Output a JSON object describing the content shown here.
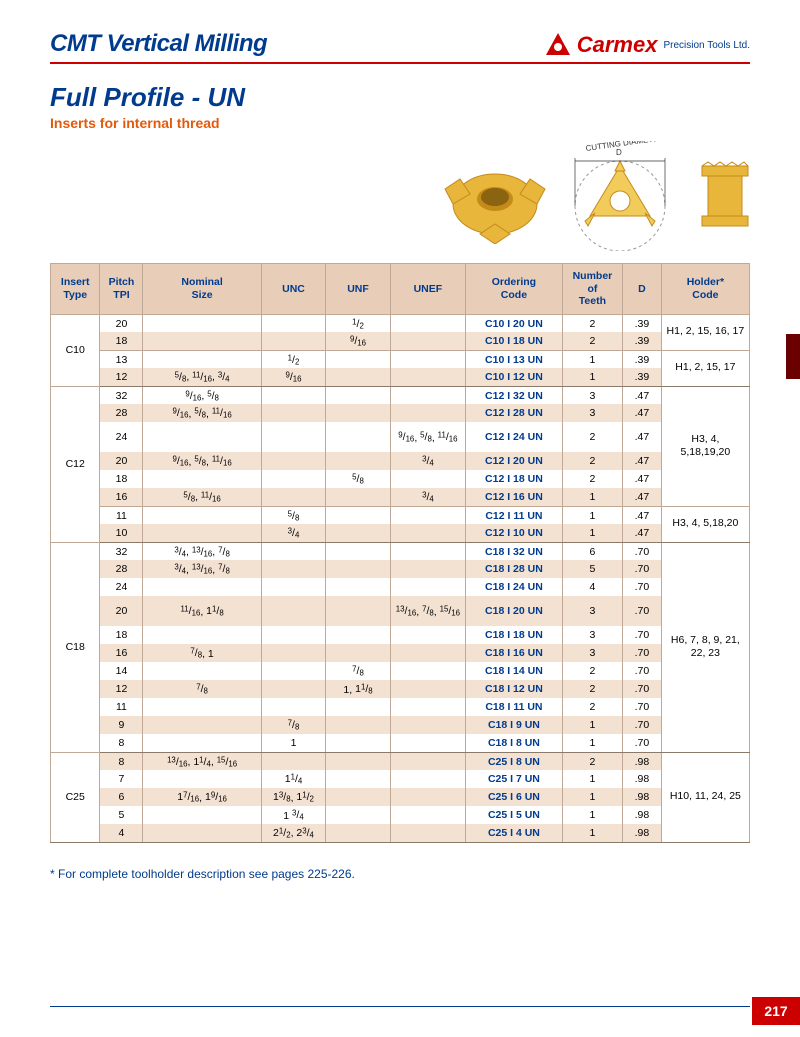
{
  "header": {
    "title": "CMT Vertical Milling",
    "brand": "Carmex",
    "brand_sub": "Precision Tools Ltd."
  },
  "subtitle": "Full Profile - UN",
  "tagline": "Inserts for internal thread",
  "diagram_label": "CUTTING DIAMETER",
  "diagram_letter": "D",
  "columns": [
    "Insert Type",
    "Pitch TPI",
    "Nominal Size",
    "UNC",
    "UNF",
    "UNEF",
    "Ordering Code",
    "Number of Teeth",
    "D",
    "Holder* Code"
  ],
  "col_widths": [
    "46px",
    "40px",
    "110px",
    "60px",
    "60px",
    "70px",
    "90px",
    "56px",
    "36px",
    "82px"
  ],
  "groups": [
    {
      "type": "C10",
      "holder_splits": [
        2,
        2
      ],
      "holders": [
        "H1, 2, 15, 16, 17",
        "H1, 2, 15, 17"
      ],
      "rows": [
        {
          "tpi": "20",
          "nom": "",
          "unc": "",
          "unf": "1/2",
          "unef": "",
          "code": "C10 I 20 UN",
          "teeth": "2",
          "d": ".39"
        },
        {
          "tpi": "18",
          "nom": "",
          "unc": "",
          "unf": "9/16",
          "unef": "",
          "code": "C10 I 18 UN",
          "teeth": "2",
          "d": ".39",
          "stripe": true,
          "sep": true
        },
        {
          "tpi": "13",
          "nom": "",
          "unc": "1/2",
          "unf": "",
          "unef": "",
          "code": "C10 I 13 UN",
          "teeth": "1",
          "d": ".39"
        },
        {
          "tpi": "12",
          "nom": "5/8, 11/16, 3/4",
          "unc": "9/16",
          "unf": "",
          "unef": "",
          "code": "C10 I 12 UN",
          "teeth": "1",
          "d": ".39",
          "stripe": true
        }
      ]
    },
    {
      "type": "C12",
      "holder_splits": [
        6,
        2
      ],
      "holders": [
        "H3, 4, 5,18,19,20",
        "H3, 4, 5,18,20"
      ],
      "rows": [
        {
          "tpi": "32",
          "nom": "9/16, 5/8",
          "unc": "",
          "unf": "",
          "unef": "",
          "code": "C12 I 32 UN",
          "teeth": "3",
          "d": ".47"
        },
        {
          "tpi": "28",
          "nom": "9/16, 5/8, 11/16",
          "unc": "",
          "unf": "",
          "unef": "",
          "code": "C12 I 28 UN",
          "teeth": "3",
          "d": ".47",
          "stripe": true
        },
        {
          "tpi": "24",
          "nom": "",
          "unc": "",
          "unf": "",
          "unef": "9/16, 5/8, 11/16",
          "code": "C12 I 24 UN",
          "teeth": "2",
          "d": ".47",
          "tall": true
        },
        {
          "tpi": "20",
          "nom": "9/16, 5/8, 11/16",
          "unc": "",
          "unf": "",
          "unef": "3/4",
          "code": "C12 I 20 UN",
          "teeth": "2",
          "d": ".47",
          "stripe": true
        },
        {
          "tpi": "18",
          "nom": "",
          "unc": "",
          "unf": "5/8",
          "unef": "",
          "code": "C12 I 18 UN",
          "teeth": "2",
          "d": ".47"
        },
        {
          "tpi": "16",
          "nom": "5/8, 11/16",
          "unc": "",
          "unf": "",
          "unef": "3/4",
          "code": "C12 I 16 UN",
          "teeth": "1",
          "d": ".47",
          "stripe": true,
          "sep": true
        },
        {
          "tpi": "11",
          "nom": "",
          "unc": "5/8",
          "unf": "",
          "unef": "",
          "code": "C12 I 11 UN",
          "teeth": "1",
          "d": ".47"
        },
        {
          "tpi": "10",
          "nom": "",
          "unc": "3/4",
          "unf": "",
          "unef": "",
          "code": "C12 I 10 UN",
          "teeth": "1",
          "d": ".47",
          "stripe": true
        }
      ]
    },
    {
      "type": "C18",
      "holder_splits": [
        11
      ],
      "holders": [
        "H6, 7, 8, 9, 21, 22, 23"
      ],
      "rows": [
        {
          "tpi": "32",
          "nom": "3/4, 13/16, 7/8",
          "unc": "",
          "unf": "",
          "unef": "",
          "code": "C18 I 32 UN",
          "teeth": "6",
          "d": ".70"
        },
        {
          "tpi": "28",
          "nom": "3/4, 13/16, 7/8",
          "unc": "",
          "unf": "",
          "unef": "",
          "code": "C18 I 28 UN",
          "teeth": "5",
          "d": ".70",
          "stripe": true
        },
        {
          "tpi": "24",
          "nom": "",
          "unc": "",
          "unf": "",
          "unef": "",
          "code": "C18 I 24 UN",
          "teeth": "4",
          "d": ".70"
        },
        {
          "tpi": "20",
          "nom": "11/16, 11/8",
          "unc": "",
          "unf": "",
          "unef": "13/16, 7/8, 15/16",
          "code": "C18 I 20 UN",
          "teeth": "3",
          "d": ".70",
          "stripe": true,
          "tall": true
        },
        {
          "tpi": "18",
          "nom": "",
          "unc": "",
          "unf": "",
          "unef": "",
          "code": "C18 I 18 UN",
          "teeth": "3",
          "d": ".70"
        },
        {
          "tpi": "16",
          "nom": "7/8, 1",
          "unc": "",
          "unf": "",
          "unef": "",
          "code": "C18 I 16 UN",
          "teeth": "3",
          "d": ".70",
          "stripe": true
        },
        {
          "tpi": "14",
          "nom": "",
          "unc": "",
          "unf": "7/8",
          "unef": "",
          "code": "C18 I 14 UN",
          "teeth": "2",
          "d": ".70"
        },
        {
          "tpi": "12",
          "nom": "7/8",
          "unc": "",
          "unf": "1, 11/8",
          "unef": "",
          "code": "C18 I 12 UN",
          "teeth": "2",
          "d": ".70",
          "stripe": true
        },
        {
          "tpi": "11",
          "nom": "",
          "unc": "",
          "unf": "",
          "unef": "",
          "code": "C18 I 11 UN",
          "teeth": "2",
          "d": ".70"
        },
        {
          "tpi": "9",
          "nom": "",
          "unc": "7/8",
          "unf": "",
          "unef": "",
          "code": "C18 I  9 UN",
          "teeth": "1",
          "d": ".70",
          "stripe": true
        },
        {
          "tpi": "8",
          "nom": "",
          "unc": "1",
          "unf": "",
          "unef": "",
          "code": "C18 I  8 UN",
          "teeth": "1",
          "d": ".70"
        }
      ]
    },
    {
      "type": "C25",
      "holder_splits": [
        5
      ],
      "holders": [
        "H10, 11, 24, 25"
      ],
      "rows": [
        {
          "tpi": "8",
          "nom": "13/16, 11/4, 15/16",
          "unc": "",
          "unf": "",
          "unef": "",
          "code": "C25 I  8 UN",
          "teeth": "2",
          "d": ".98",
          "stripe": true
        },
        {
          "tpi": "7",
          "nom": "",
          "unc": "11/4",
          "unf": "",
          "unef": "",
          "code": "C25 I  7 UN",
          "teeth": "1",
          "d": ".98"
        },
        {
          "tpi": "6",
          "nom": "17/16, 19/16",
          "unc": "13/8, 11/2",
          "unf": "",
          "unef": "",
          "code": "C25 I  6 UN",
          "teeth": "1",
          "d": ".98",
          "stripe": true
        },
        {
          "tpi": "5",
          "nom": "",
          "unc": "1 3/4",
          "unf": "",
          "unef": "",
          "code": "C25 I  5 UN",
          "teeth": "1",
          "d": ".98"
        },
        {
          "tpi": "4",
          "nom": "",
          "unc": "21/2, 23/4",
          "unf": "",
          "unef": "",
          "code": "C25 I  4 UN",
          "teeth": "1",
          "d": ".98",
          "stripe": true
        }
      ]
    }
  ],
  "footnote": "* For complete toolholder description see pages 225-226.",
  "page_number": "217",
  "colors": {
    "brand_red": "#c00",
    "blue": "#003b8e",
    "orange": "#e35a0c",
    "header_bg": "#e8cdb8",
    "stripe": "#f3e1d2",
    "border": "#bfa895",
    "tab": "#6b0000",
    "insert_gold": "#e8b63a",
    "insert_dark": "#c48a1a"
  }
}
